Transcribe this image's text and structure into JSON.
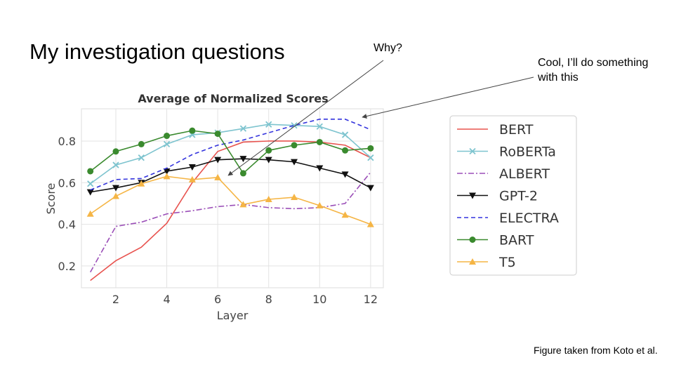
{
  "slide": {
    "title": "My investigation questions",
    "note_why": "Why?",
    "note_cool": "Cool, I’ll do something with this",
    "caption": "Figure taken from Koto et al."
  },
  "chart_data": {
    "type": "line",
    "title": "Average of Normalized Scores",
    "xlabel": "Layer",
    "ylabel": "Score",
    "x": [
      1,
      2,
      3,
      4,
      5,
      6,
      7,
      8,
      9,
      10,
      11,
      12
    ],
    "xlim": [
      0.65,
      12.5
    ],
    "ylim": [
      0.095,
      0.955
    ],
    "xticks": [
      2,
      4,
      6,
      8,
      10,
      12
    ],
    "yticks": [
      0.2,
      0.4,
      0.6,
      0.8
    ],
    "grid": true,
    "legend_position": "right",
    "series": [
      {
        "name": "BERT",
        "color": "#e8534f",
        "dash": "",
        "marker": "none",
        "values": [
          0.13,
          0.225,
          0.29,
          0.405,
          0.6,
          0.75,
          0.795,
          0.8,
          0.8,
          0.795,
          0.78,
          0.72
        ]
      },
      {
        "name": "RoBERTa",
        "color": "#7ec4cf",
        "dash": "",
        "marker": "x",
        "values": [
          0.595,
          0.685,
          0.72,
          0.785,
          0.83,
          0.84,
          0.86,
          0.88,
          0.875,
          0.87,
          0.83,
          0.72
        ]
      },
      {
        "name": "ALBERT",
        "color": "#9b4fb8",
        "dash": "8,3,2,3",
        "marker": "none",
        "values": [
          0.17,
          0.39,
          0.41,
          0.45,
          0.465,
          0.485,
          0.495,
          0.48,
          0.475,
          0.48,
          0.5,
          0.65
        ]
      },
      {
        "name": "GPT-2",
        "color": "#111111",
        "dash": "",
        "marker": "triangle-down",
        "values": [
          0.555,
          0.575,
          0.6,
          0.655,
          0.675,
          0.71,
          0.715,
          0.71,
          0.7,
          0.67,
          0.64,
          0.575
        ]
      },
      {
        "name": "ELECTRA",
        "color": "#3333dd",
        "dash": "6,4",
        "marker": "none",
        "values": [
          0.565,
          0.615,
          0.62,
          0.67,
          0.735,
          0.78,
          0.805,
          0.84,
          0.875,
          0.905,
          0.905,
          0.855
        ]
      },
      {
        "name": "BART",
        "color": "#3a8a2e",
        "dash": "",
        "marker": "circle",
        "values": [
          0.655,
          0.75,
          0.785,
          0.825,
          0.85,
          0.835,
          0.645,
          0.755,
          0.78,
          0.795,
          0.755,
          0.765
        ]
      },
      {
        "name": "T5",
        "color": "#f5b545",
        "dash": "",
        "marker": "triangle-up",
        "values": [
          0.45,
          0.535,
          0.595,
          0.63,
          0.615,
          0.625,
          0.495,
          0.52,
          0.53,
          0.49,
          0.445,
          0.4
        ]
      }
    ]
  }
}
